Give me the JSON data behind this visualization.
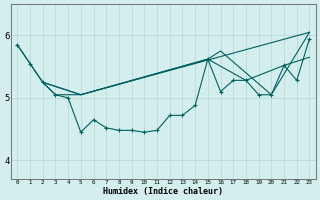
{
  "xlabel": "Humidex (Indice chaleur)",
  "ylabel": "",
  "bg_color": "#d4eeed",
  "grid_color": "#b2d8d4",
  "line_color": "#006060",
  "xlim": [
    -0.5,
    23.5
  ],
  "ylim": [
    3.7,
    6.5
  ],
  "yticks": [
    4,
    5,
    6
  ],
  "xtick_labels": [
    "0",
    "1",
    "2",
    "3",
    "4",
    "5",
    "6",
    "7",
    "8",
    "9",
    "10",
    "11",
    "12",
    "13",
    "14",
    "15",
    "16",
    "17",
    "18",
    "19",
    "20",
    "21",
    "22",
    "23"
  ],
  "series": [
    {
      "x": [
        0,
        1,
        2,
        3,
        4,
        5,
        6,
        7,
        8,
        9,
        10,
        11,
        12,
        13,
        14,
        15,
        16,
        17,
        18,
        19,
        20,
        21,
        22,
        23
      ],
      "y": [
        5.85,
        5.55,
        5.25,
        5.05,
        5.0,
        4.45,
        4.65,
        4.52,
        4.48,
        4.48,
        4.45,
        4.48,
        4.72,
        4.72,
        4.88,
        5.62,
        5.1,
        5.28,
        5.28,
        5.05,
        5.05,
        5.52,
        5.28,
        5.95
      ],
      "marker": "+"
    },
    {
      "x": [
        0,
        2,
        3,
        5,
        23
      ],
      "y": [
        5.85,
        5.25,
        5.05,
        5.05,
        6.05
      ],
      "marker": null
    },
    {
      "x": [
        2,
        5,
        15,
        16,
        20,
        23
      ],
      "y": [
        5.25,
        5.05,
        5.62,
        5.75,
        5.05,
        6.05
      ],
      "marker": null
    },
    {
      "x": [
        2,
        5,
        15,
        18,
        21,
        23
      ],
      "y": [
        5.25,
        5.05,
        5.62,
        5.28,
        5.52,
        5.65
      ],
      "marker": null
    }
  ]
}
